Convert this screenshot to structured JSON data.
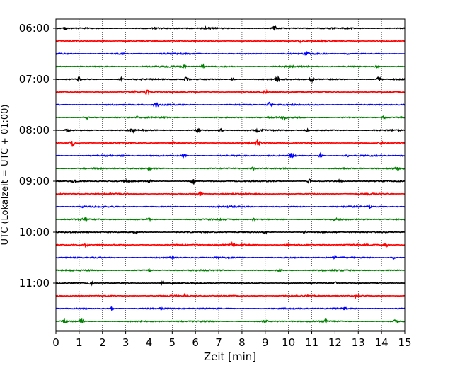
{
  "chart_data": {
    "type": "line",
    "title": "",
    "xlabel": "Zeit  [min]",
    "ylabel": "UTC (Lokalzeit = UTC + 01:00)",
    "xlim": [
      0,
      15
    ],
    "x_ticks": [
      "0",
      "1",
      "2",
      "3",
      "4",
      "5",
      "6",
      "7",
      "8",
      "9",
      "10",
      "11",
      "12",
      "13",
      "14",
      "15"
    ],
    "y_ticks": [
      "06:00",
      "07:00",
      "08:00",
      "09:00",
      "10:00",
      "11:00"
    ],
    "grid": "vertical dotted at each minute",
    "trace_interval_minutes": 15,
    "trace_colors": [
      "#000000",
      "#ff0000",
      "#0000ff",
      "#008000"
    ],
    "series": [
      {
        "start": "06:00",
        "color": "#000000",
        "events": [
          [
            4.3,
            0.9
          ],
          [
            6.5,
            0.6
          ],
          [
            9.4,
            0.9
          ],
          [
            0.4,
            0.5
          ]
        ]
      },
      {
        "start": "06:15",
        "color": "#ff0000",
        "events": [
          [
            2.0,
            0.4
          ],
          [
            10.5,
            0.4
          ]
        ]
      },
      {
        "start": "06:30",
        "color": "#0000ff",
        "events": [
          [
            2.8,
            0.4
          ],
          [
            10.8,
            0.4
          ],
          [
            12.5,
            0.4
          ]
        ]
      },
      {
        "start": "06:45",
        "color": "#008000",
        "events": [
          [
            5.5,
            0.6
          ],
          [
            6.3,
            0.8
          ],
          [
            13.8,
            0.5
          ],
          [
            10.7,
            0.4
          ]
        ]
      },
      {
        "start": "07:00",
        "color": "#000000",
        "events": [
          [
            1.0,
            0.7
          ],
          [
            2.8,
            0.6
          ],
          [
            5.6,
            0.8
          ],
          [
            9.5,
            1.0
          ],
          [
            11.0,
            1.0
          ],
          [
            13.9,
            1.2
          ],
          [
            7.6,
            0.5
          ]
        ]
      },
      {
        "start": "07:15",
        "color": "#ff0000",
        "events": [
          [
            3.4,
            0.5
          ],
          [
            3.9,
            1.0
          ],
          [
            9.0,
            0.4
          ]
        ]
      },
      {
        "start": "07:30",
        "color": "#0000ff",
        "events": [
          [
            4.3,
            1.4
          ],
          [
            9.2,
            1.2
          ]
        ]
      },
      {
        "start": "07:45",
        "color": "#008000",
        "events": [
          [
            1.3,
            0.6
          ],
          [
            3.5,
            0.4
          ],
          [
            9.8,
            0.7
          ],
          [
            14.1,
            0.4
          ]
        ]
      },
      {
        "start": "08:00",
        "color": "#000000",
        "events": [
          [
            0.5,
            0.7
          ],
          [
            3.3,
            0.6
          ],
          [
            6.1,
            0.7
          ],
          [
            7.1,
            0.7
          ],
          [
            8.7,
            0.7
          ],
          [
            10.8,
            0.5
          ]
        ]
      },
      {
        "start": "08:15",
        "color": "#ff0000",
        "events": [
          [
            0.7,
            1.6
          ],
          [
            5.0,
            0.8
          ],
          [
            8.7,
            1.2
          ],
          [
            14.0,
            0.5
          ]
        ]
      },
      {
        "start": "08:30",
        "color": "#0000ff",
        "events": [
          [
            5.5,
            0.7
          ],
          [
            10.1,
            1.0
          ],
          [
            11.4,
            0.9
          ],
          [
            12.5,
            0.4
          ]
        ]
      },
      {
        "start": "08:45",
        "color": "#008000",
        "events": [
          [
            4.0,
            0.4
          ],
          [
            8.5,
            0.4
          ],
          [
            14.7,
            0.5
          ]
        ]
      },
      {
        "start": "09:00",
        "color": "#000000",
        "events": [
          [
            0.8,
            0.6
          ],
          [
            3.0,
            0.5
          ],
          [
            4.0,
            0.6
          ],
          [
            5.9,
            1.3
          ],
          [
            10.9,
            0.9
          ],
          [
            12.2,
            0.4
          ]
        ]
      },
      {
        "start": "09:15",
        "color": "#ff0000",
        "events": [
          [
            6.2,
            0.7
          ],
          [
            13.5,
            0.3
          ]
        ]
      },
      {
        "start": "09:30",
        "color": "#0000ff",
        "events": [
          [
            1.2,
            0.4
          ],
          [
            7.5,
            0.4
          ],
          [
            13.5,
            0.4
          ]
        ]
      },
      {
        "start": "09:45",
        "color": "#008000",
        "events": [
          [
            1.2,
            0.6
          ],
          [
            4.0,
            0.4
          ],
          [
            8.5,
            0.4
          ],
          [
            12.0,
            0.4
          ]
        ]
      },
      {
        "start": "10:00",
        "color": "#000000",
        "events": [
          [
            3.4,
            0.5
          ],
          [
            9.0,
            0.5
          ],
          [
            10.7,
            0.5
          ]
        ]
      },
      {
        "start": "10:15",
        "color": "#ff0000",
        "events": [
          [
            1.3,
            0.6
          ],
          [
            7.6,
            0.9
          ],
          [
            9.9,
            0.6
          ],
          [
            14.2,
            0.8
          ]
        ]
      },
      {
        "start": "10:30",
        "color": "#0000ff",
        "events": [
          [
            5.0,
            0.6
          ],
          [
            12.0,
            0.4
          ],
          [
            14.5,
            0.6
          ]
        ]
      },
      {
        "start": "10:45",
        "color": "#008000",
        "events": [
          [
            4.0,
            0.5
          ],
          [
            9.6,
            0.4
          ]
        ]
      },
      {
        "start": "11:00",
        "color": "#000000",
        "events": [
          [
            1.5,
            0.8
          ],
          [
            4.6,
            0.5
          ],
          [
            12.0,
            0.4
          ]
        ]
      },
      {
        "start": "11:15",
        "color": "#ff0000",
        "events": [
          [
            5.5,
            0.4
          ],
          [
            12.9,
            0.6
          ]
        ]
      },
      {
        "start": "11:30",
        "color": "#0000ff",
        "events": [
          [
            2.4,
            0.5
          ],
          [
            4.5,
            0.5
          ],
          [
            12.4,
            0.4
          ]
        ]
      },
      {
        "start": "11:45",
        "color": "#008000",
        "events": [
          [
            0.4,
            0.7
          ],
          [
            1.1,
            1.0
          ],
          [
            9.0,
            0.4
          ],
          [
            11.6,
            0.5
          ],
          [
            14.6,
            0.6
          ]
        ]
      }
    ]
  }
}
